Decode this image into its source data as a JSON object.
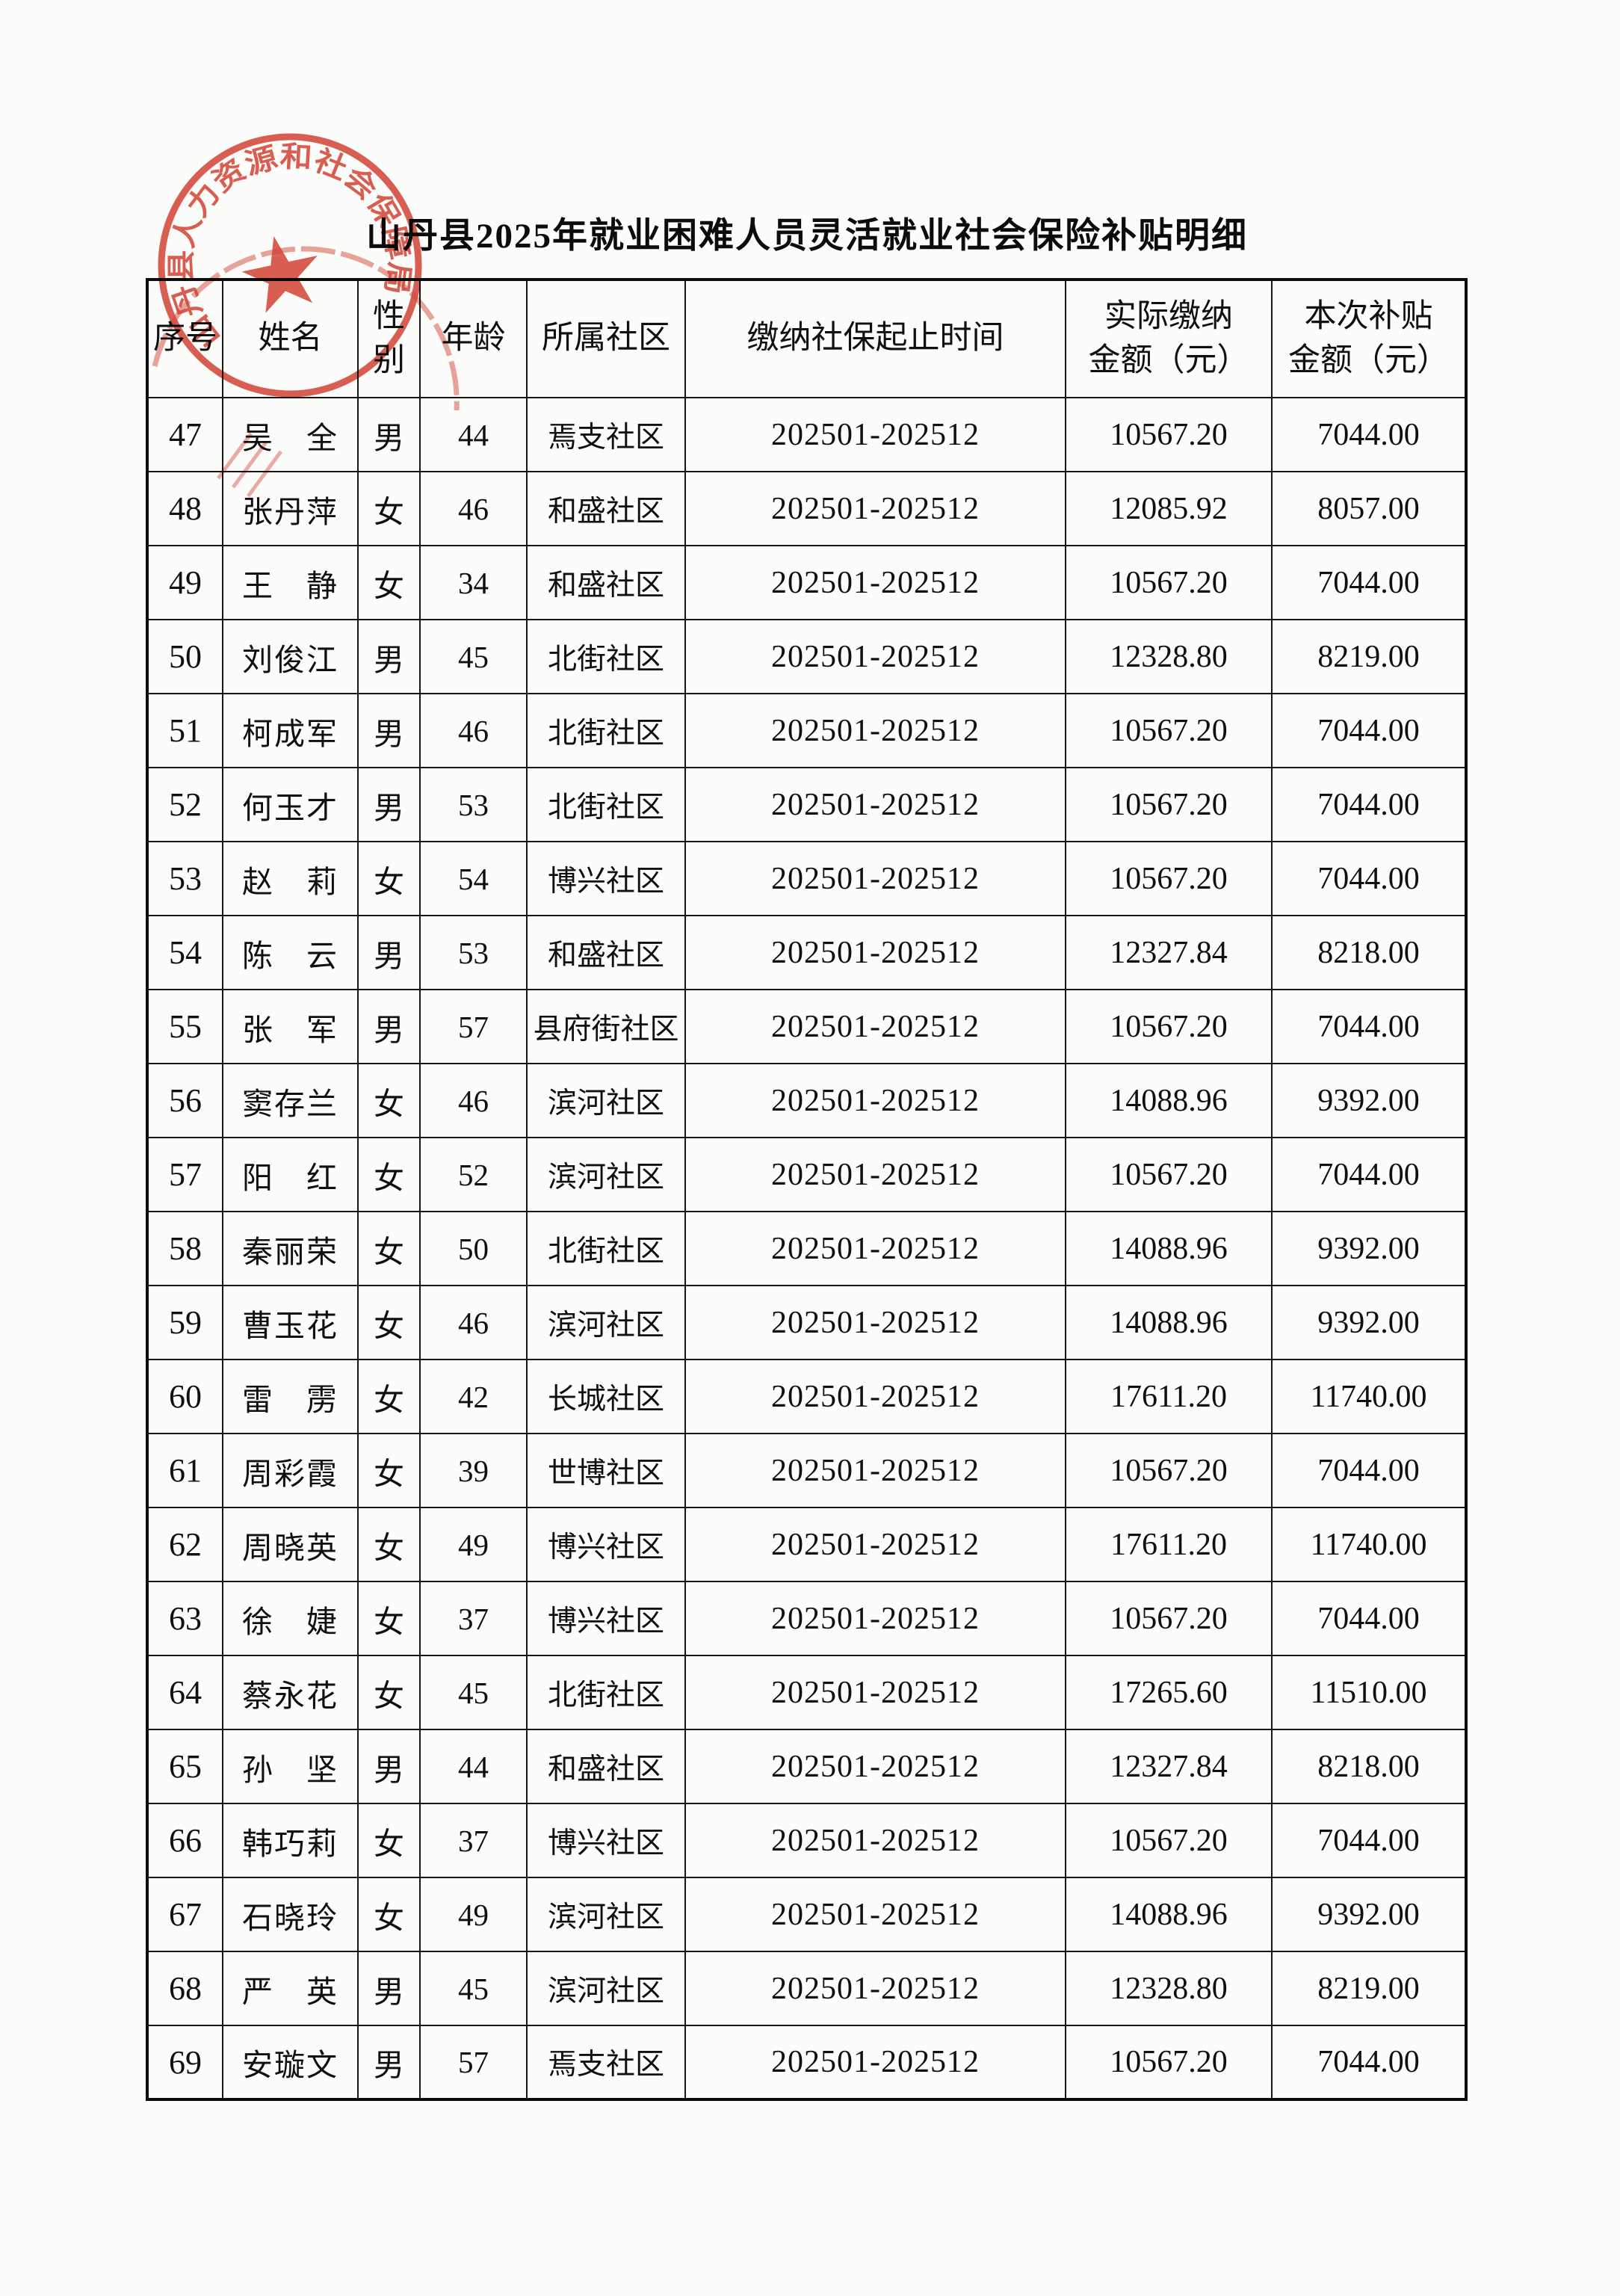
{
  "title": "山丹县2025年就业困难人员灵活就业社会保险补贴明细",
  "seal": {
    "ring_text": "山丹县人力资源和社会保障局",
    "star": "★",
    "color": "#d6493c"
  },
  "table": {
    "columns": [
      {
        "key": "seq",
        "label": "序号"
      },
      {
        "key": "name",
        "label": "姓名"
      },
      {
        "key": "gender",
        "label": "性别"
      },
      {
        "key": "age",
        "label": "年龄"
      },
      {
        "key": "community",
        "label": "所属社区"
      },
      {
        "key": "period",
        "label": "缴纳社保起止时间"
      },
      {
        "key": "paid",
        "label": "实际缴纳\n金额（元）"
      },
      {
        "key": "subsidy",
        "label": "本次补贴\n金额（元）"
      }
    ],
    "rows": [
      {
        "seq": "47",
        "name": "吴　全",
        "gender": "男",
        "age": "44",
        "community": "焉支社区",
        "period": "202501-202512",
        "paid": "10567.20",
        "subsidy": "7044.00"
      },
      {
        "seq": "48",
        "name": "张丹萍",
        "gender": "女",
        "age": "46",
        "community": "和盛社区",
        "period": "202501-202512",
        "paid": "12085.92",
        "subsidy": "8057.00"
      },
      {
        "seq": "49",
        "name": "王　静",
        "gender": "女",
        "age": "34",
        "community": "和盛社区",
        "period": "202501-202512",
        "paid": "10567.20",
        "subsidy": "7044.00"
      },
      {
        "seq": "50",
        "name": "刘俊江",
        "gender": "男",
        "age": "45",
        "community": "北街社区",
        "period": "202501-202512",
        "paid": "12328.80",
        "subsidy": "8219.00"
      },
      {
        "seq": "51",
        "name": "柯成军",
        "gender": "男",
        "age": "46",
        "community": "北街社区",
        "period": "202501-202512",
        "paid": "10567.20",
        "subsidy": "7044.00"
      },
      {
        "seq": "52",
        "name": "何玉才",
        "gender": "男",
        "age": "53",
        "community": "北街社区",
        "period": "202501-202512",
        "paid": "10567.20",
        "subsidy": "7044.00"
      },
      {
        "seq": "53",
        "name": "赵　莉",
        "gender": "女",
        "age": "54",
        "community": "博兴社区",
        "period": "202501-202512",
        "paid": "10567.20",
        "subsidy": "7044.00"
      },
      {
        "seq": "54",
        "name": "陈　云",
        "gender": "男",
        "age": "53",
        "community": "和盛社区",
        "period": "202501-202512",
        "paid": "12327.84",
        "subsidy": "8218.00"
      },
      {
        "seq": "55",
        "name": "张　军",
        "gender": "男",
        "age": "57",
        "community": "县府街社区",
        "period": "202501-202512",
        "paid": "10567.20",
        "subsidy": "7044.00"
      },
      {
        "seq": "56",
        "name": "窦存兰",
        "gender": "女",
        "age": "46",
        "community": "滨河社区",
        "period": "202501-202512",
        "paid": "14088.96",
        "subsidy": "9392.00"
      },
      {
        "seq": "57",
        "name": "阳　红",
        "gender": "女",
        "age": "52",
        "community": "滨河社区",
        "period": "202501-202512",
        "paid": "10567.20",
        "subsidy": "7044.00"
      },
      {
        "seq": "58",
        "name": "秦丽荣",
        "gender": "女",
        "age": "50",
        "community": "北街社区",
        "period": "202501-202512",
        "paid": "14088.96",
        "subsidy": "9392.00"
      },
      {
        "seq": "59",
        "name": "曹玉花",
        "gender": "女",
        "age": "46",
        "community": "滨河社区",
        "period": "202501-202512",
        "paid": "14088.96",
        "subsidy": "9392.00"
      },
      {
        "seq": "60",
        "name": "雷　雳",
        "gender": "女",
        "age": "42",
        "community": "长城社区",
        "period": "202501-202512",
        "paid": "17611.20",
        "subsidy": "11740.00"
      },
      {
        "seq": "61",
        "name": "周彩霞",
        "gender": "女",
        "age": "39",
        "community": "世博社区",
        "period": "202501-202512",
        "paid": "10567.20",
        "subsidy": "7044.00"
      },
      {
        "seq": "62",
        "name": "周晓英",
        "gender": "女",
        "age": "49",
        "community": "博兴社区",
        "period": "202501-202512",
        "paid": "17611.20",
        "subsidy": "11740.00"
      },
      {
        "seq": "63",
        "name": "徐　婕",
        "gender": "女",
        "age": "37",
        "community": "博兴社区",
        "period": "202501-202512",
        "paid": "10567.20",
        "subsidy": "7044.00"
      },
      {
        "seq": "64",
        "name": "蔡永花",
        "gender": "女",
        "age": "45",
        "community": "北街社区",
        "period": "202501-202512",
        "paid": "17265.60",
        "subsidy": "11510.00"
      },
      {
        "seq": "65",
        "name": "孙　坚",
        "gender": "男",
        "age": "44",
        "community": "和盛社区",
        "period": "202501-202512",
        "paid": "12327.84",
        "subsidy": "8218.00"
      },
      {
        "seq": "66",
        "name": "韩巧莉",
        "gender": "女",
        "age": "37",
        "community": "博兴社区",
        "period": "202501-202512",
        "paid": "10567.20",
        "subsidy": "7044.00"
      },
      {
        "seq": "67",
        "name": "石晓玲",
        "gender": "女",
        "age": "49",
        "community": "滨河社区",
        "period": "202501-202512",
        "paid": "14088.96",
        "subsidy": "9392.00"
      },
      {
        "seq": "68",
        "name": "严　英",
        "gender": "男",
        "age": "45",
        "community": "滨河社区",
        "period": "202501-202512",
        "paid": "12328.80",
        "subsidy": "8219.00"
      },
      {
        "seq": "69",
        "name": "安璇文",
        "gender": "男",
        "age": "57",
        "community": "焉支社区",
        "period": "202501-202512",
        "paid": "10567.20",
        "subsidy": "7044.00"
      }
    ]
  }
}
